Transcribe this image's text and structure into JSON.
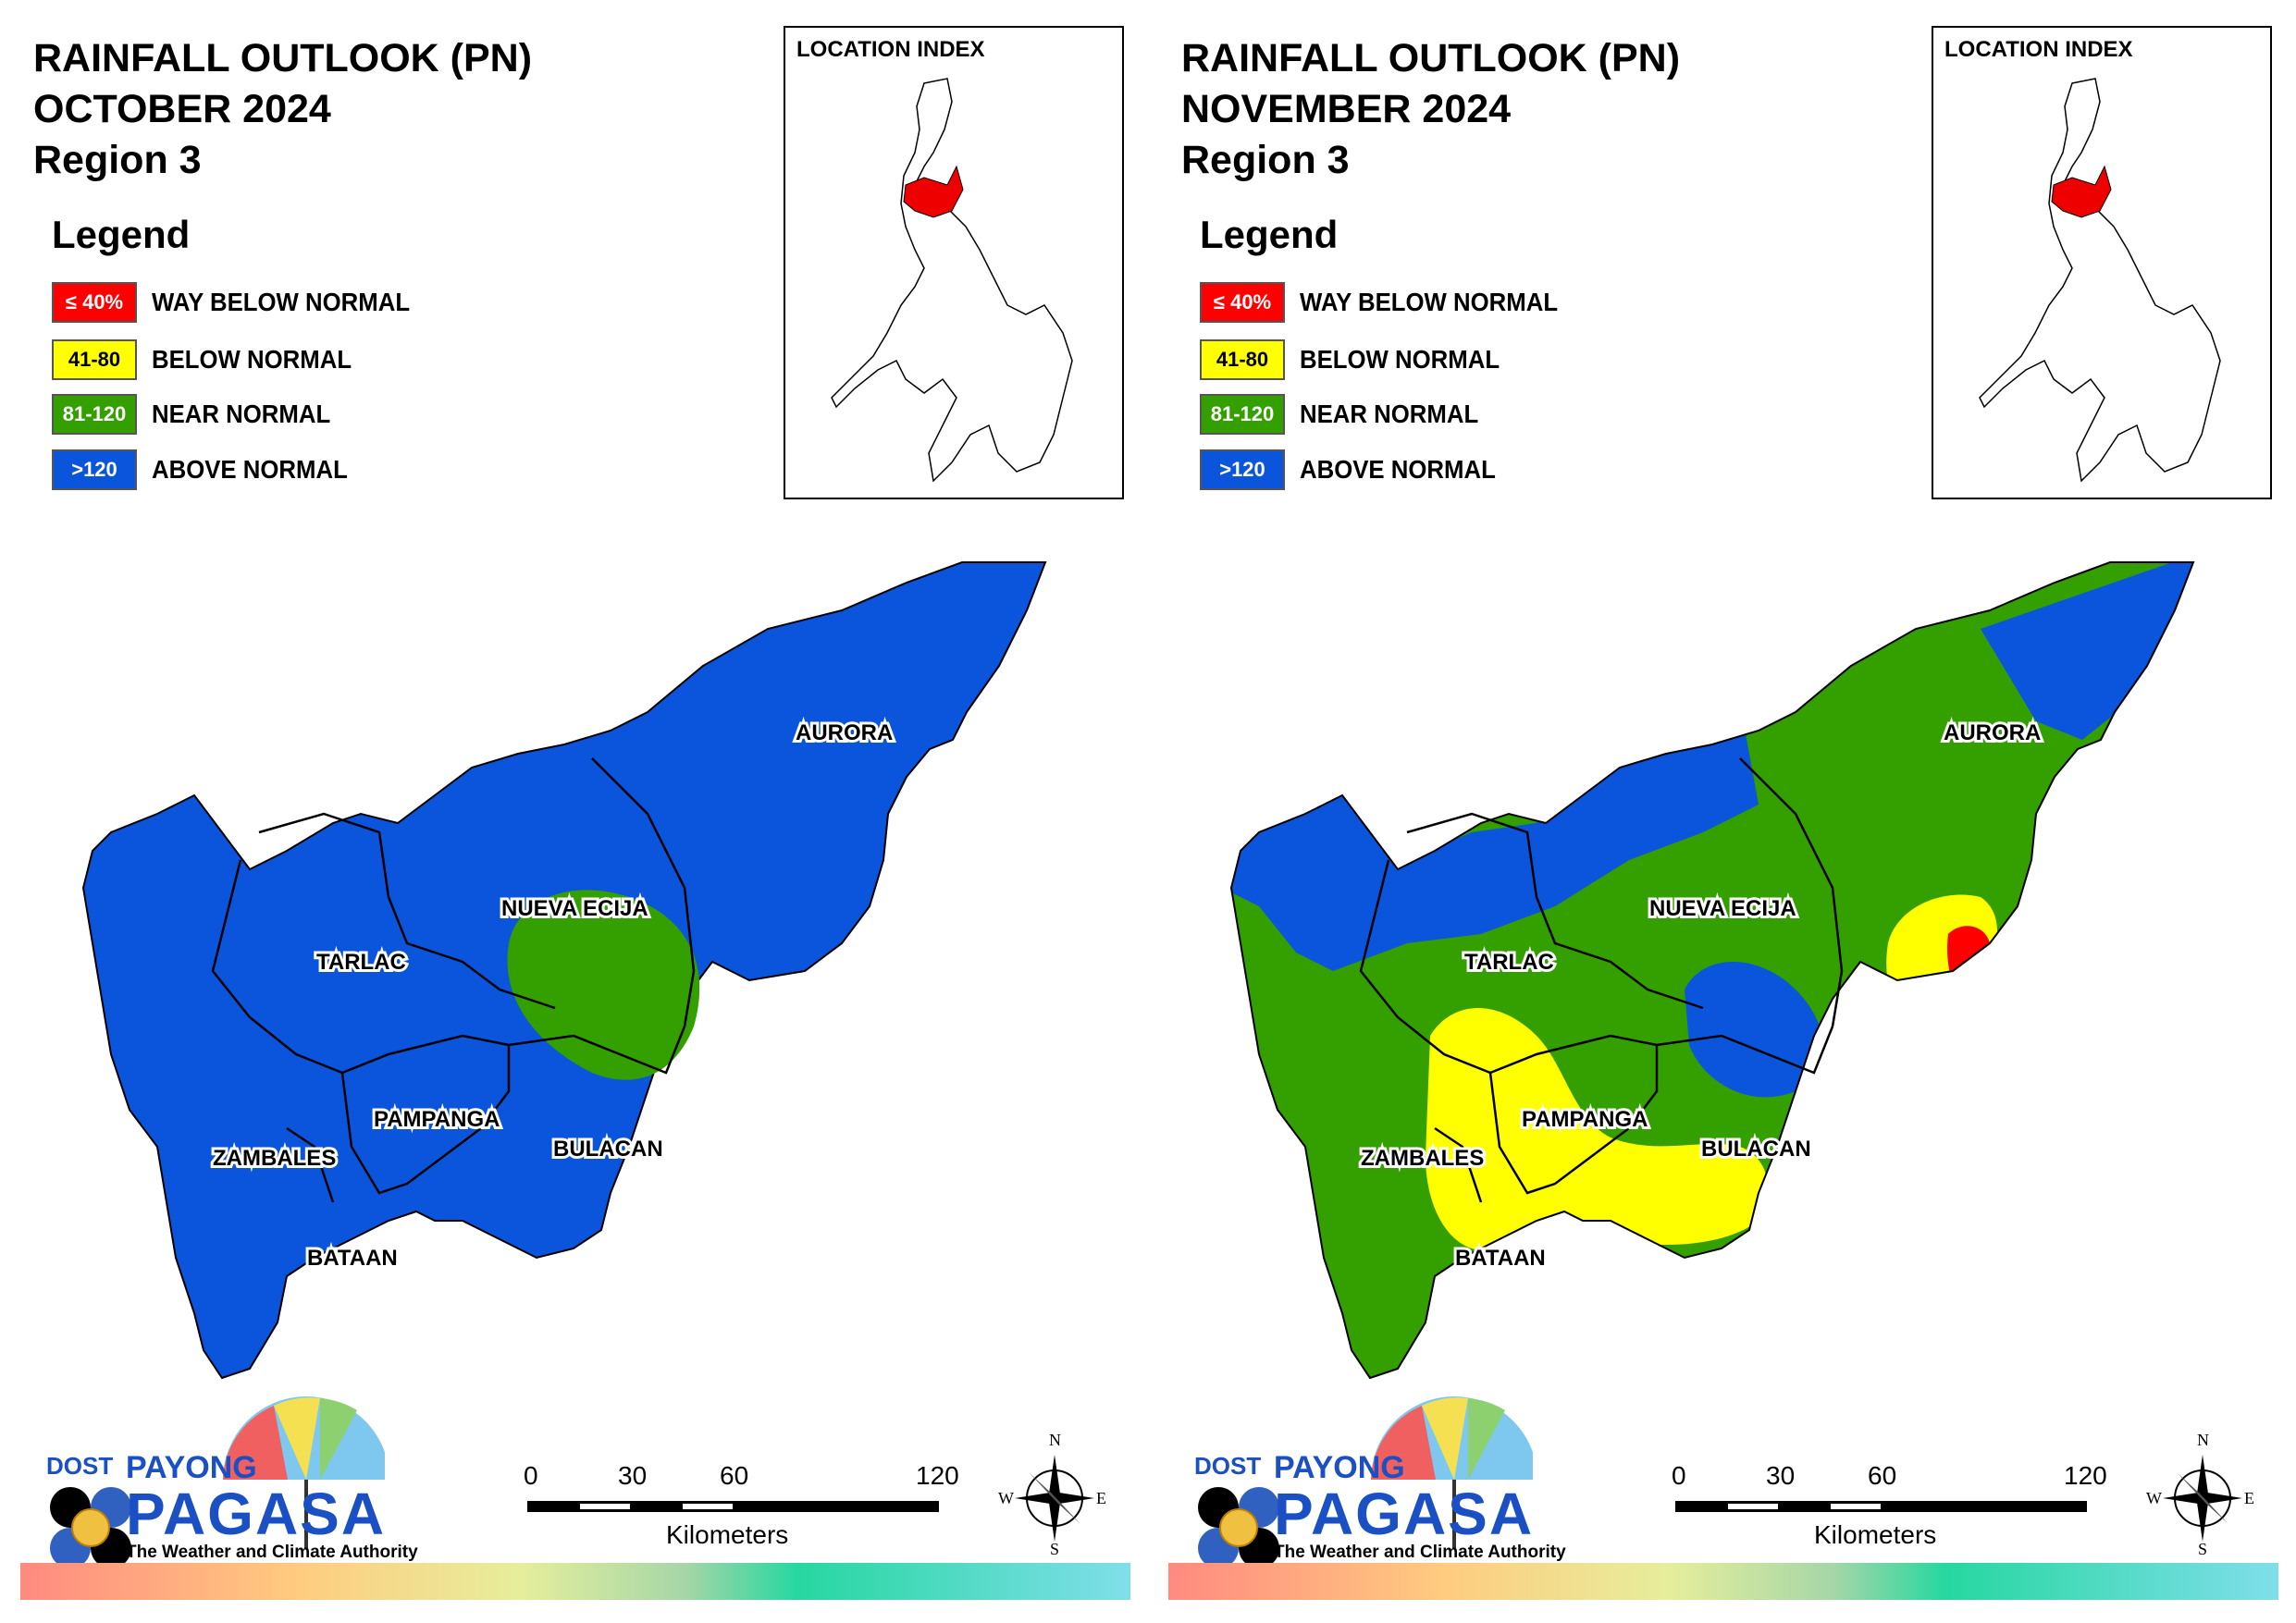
{
  "colors": {
    "way_below": "#ff0000",
    "below": "#ffff00",
    "near": "#33a000",
    "above": "#0a55dc"
  },
  "panels": [
    {
      "title_line1": "RAINFALL OUTLOOK (PN)",
      "title_line2": "OCTOBER 2024",
      "title_line3": "Region 3",
      "legend_title": "Legend",
      "legend": [
        {
          "range": "≤ 40%",
          "label": "WAY BELOW NORMAL"
        },
        {
          "range": "41-80",
          "label": "BELOW NORMAL"
        },
        {
          "range": "81-120",
          "label": "NEAR NORMAL"
        },
        {
          "range": ">120",
          "label": "ABOVE NORMAL"
        }
      ],
      "location_index_title": "LOCATION INDEX",
      "provinces": {
        "aurora": "AURORA",
        "nueva_ecija": "NUEVA ECIJA",
        "tarlac": "TARLAC",
        "pampanga": "PAMPANGA",
        "zambales": "ZAMBALES",
        "bulacan": "BULACAN",
        "bataan": "BATAAN"
      },
      "logo": {
        "dost": "DOST",
        "payong": "PAYONG",
        "pagasa": "PAGASA",
        "tagline": "The Weather and Climate Authority"
      },
      "scale": {
        "ticks": [
          "0",
          "30",
          "60",
          "120"
        ],
        "unit": "Kilometers"
      },
      "compass": {
        "n": "N",
        "s": "S",
        "e": "E",
        "w": "W"
      }
    },
    {
      "title_line1": "RAINFALL OUTLOOK (PN)",
      "title_line2": "NOVEMBER 2024",
      "title_line3": "Region 3",
      "legend_title": "Legend",
      "legend": [
        {
          "range": "≤ 40%",
          "label": "WAY BELOW NORMAL"
        },
        {
          "range": "41-80",
          "label": "BELOW NORMAL"
        },
        {
          "range": "81-120",
          "label": "NEAR NORMAL"
        },
        {
          "range": ">120",
          "label": "ABOVE NORMAL"
        }
      ],
      "location_index_title": "LOCATION INDEX",
      "provinces": {
        "aurora": "AURORA",
        "nueva_ecija": "NUEVA ECIJA",
        "tarlac": "TARLAC",
        "pampanga": "PAMPANGA",
        "zambales": "ZAMBALES",
        "bulacan": "BULACAN",
        "bataan": "BATAAN"
      },
      "logo": {
        "dost": "DOST",
        "payong": "PAYONG",
        "pagasa": "PAGASA",
        "tagline": "The Weather and Climate Authority"
      },
      "scale": {
        "ticks": [
          "0",
          "30",
          "60",
          "120"
        ],
        "unit": "Kilometers"
      },
      "compass": {
        "n": "N",
        "s": "S",
        "e": "E",
        "w": "W"
      }
    }
  ]
}
